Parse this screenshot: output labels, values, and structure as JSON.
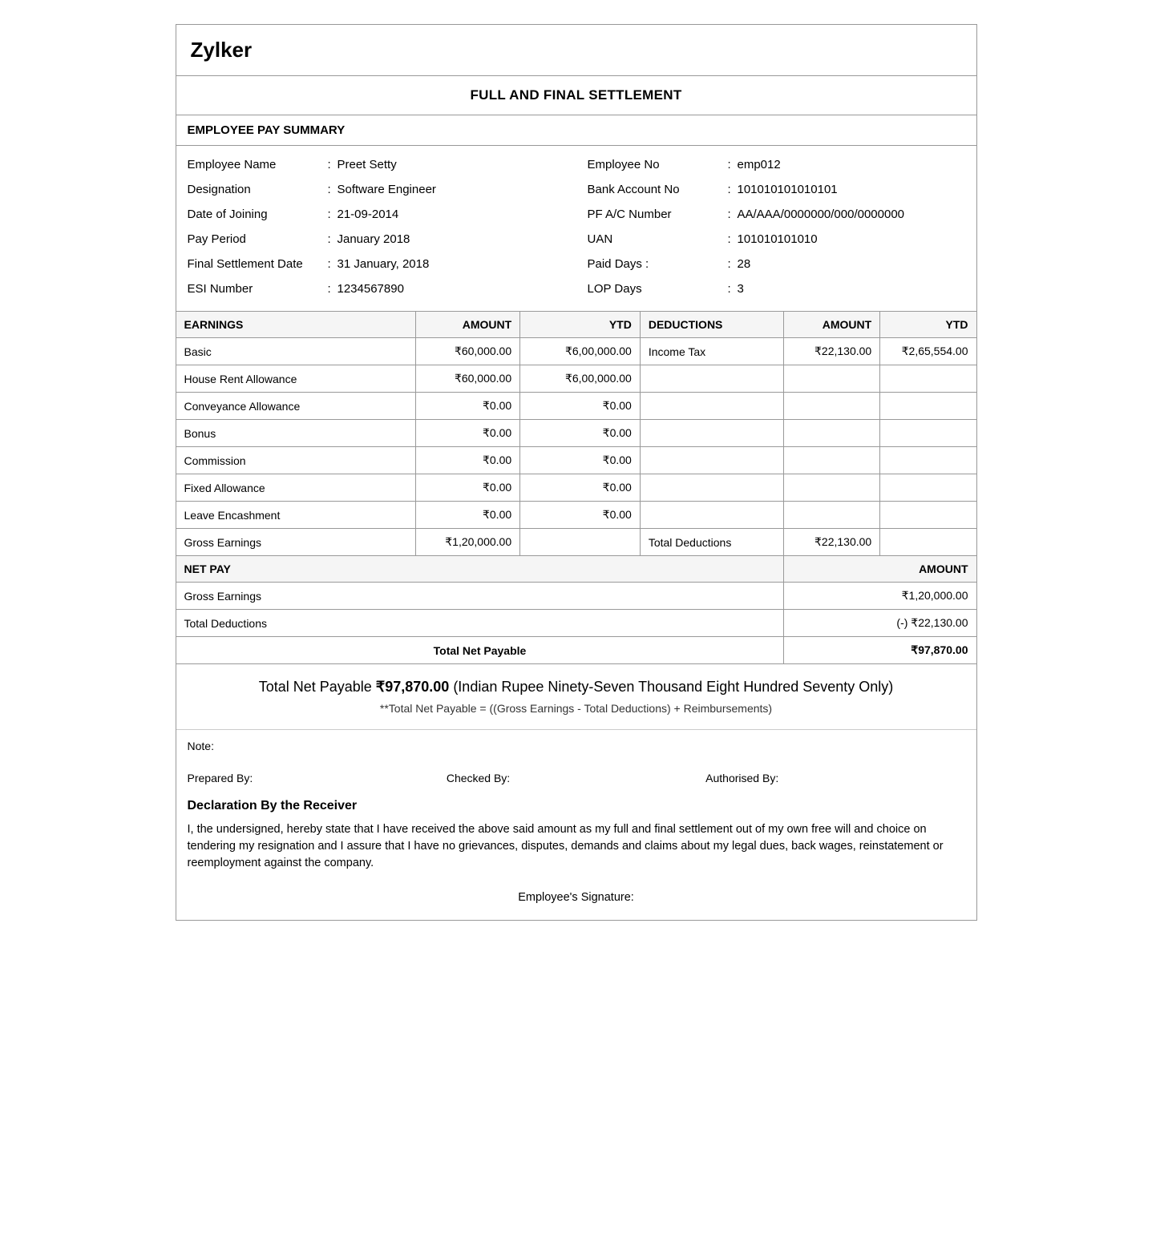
{
  "company": {
    "name": "Zylker"
  },
  "document": {
    "title": "FULL AND FINAL SETTLEMENT"
  },
  "summary": {
    "section_title": "EMPLOYEE PAY SUMMARY",
    "left": [
      {
        "label": "Employee Name",
        "value": "Preet Setty"
      },
      {
        "label": "Designation",
        "value": "Software Engineer"
      },
      {
        "label": "Date of Joining",
        "value": "21-09-2014"
      },
      {
        "label": "Pay Period",
        "value": "January 2018"
      },
      {
        "label": "Final Settlement Date",
        "value": "31 January, 2018"
      },
      {
        "label": "ESI Number",
        "value": "1234567890"
      }
    ],
    "right": [
      {
        "label": "Employee No",
        "value": "emp012"
      },
      {
        "label": "Bank Account No",
        "value": "101010101010101"
      },
      {
        "label": "PF A/C Number",
        "value": "AA/AAA/0000000/000/0000000"
      },
      {
        "label": "UAN",
        "value": "101010101010"
      },
      {
        "label": "Paid Days :",
        "value": "28"
      },
      {
        "label": "LOP Days",
        "value": "3"
      }
    ]
  },
  "tables": {
    "headers": {
      "earnings": "EARNINGS",
      "amount": "AMOUNT",
      "ytd": "YTD",
      "deductions": "DEDUCTIONS",
      "d_amount": "AMOUNT",
      "d_ytd": "YTD"
    },
    "rows": [
      {
        "earn": "Basic",
        "amt": "₹60,000.00",
        "ytd": "₹6,00,000.00",
        "ded": "Income Tax",
        "damt": "₹22,130.00",
        "dytd": "₹2,65,554.00"
      },
      {
        "earn": "House Rent Allowance",
        "amt": "₹60,000.00",
        "ytd": "₹6,00,000.00",
        "ded": "",
        "damt": "",
        "dytd": ""
      },
      {
        "earn": "Conveyance Allowance",
        "amt": "₹0.00",
        "ytd": "₹0.00",
        "ded": "",
        "damt": "",
        "dytd": ""
      },
      {
        "earn": "Bonus",
        "amt": "₹0.00",
        "ytd": "₹0.00",
        "ded": "",
        "damt": "",
        "dytd": ""
      },
      {
        "earn": "Commission",
        "amt": "₹0.00",
        "ytd": "₹0.00",
        "ded": "",
        "damt": "",
        "dytd": ""
      },
      {
        "earn": "Fixed Allowance",
        "amt": "₹0.00",
        "ytd": "₹0.00",
        "ded": "",
        "damt": "",
        "dytd": ""
      },
      {
        "earn": "Leave Encashment",
        "amt": "₹0.00",
        "ytd": "₹0.00",
        "ded": "",
        "damt": "",
        "dytd": ""
      }
    ],
    "totals": {
      "gross_earnings_label": "Gross Earnings",
      "gross_earnings_value": "₹1,20,000.00",
      "total_deductions_label": "Total Deductions",
      "total_deductions_value": "₹22,130.00"
    }
  },
  "netpay": {
    "header_label": "NET PAY",
    "header_amount": "AMOUNT",
    "rows": [
      {
        "label": "Gross Earnings",
        "value": "₹1,20,000.00"
      },
      {
        "label": "Total Deductions",
        "value": "(-) ₹22,130.00"
      }
    ],
    "total_label": "Total Net Payable",
    "total_value": "₹97,870.00"
  },
  "words": {
    "prefix": "Total Net Payable ",
    "amount": "₹97,870.00",
    "suffix": " (Indian Rupee Ninety-Seven Thousand Eight Hundred Seventy Only)",
    "formula": "**Total Net Payable = ((Gross Earnings - Total Deductions) + Reimbursements)"
  },
  "footer": {
    "note_label": "Note:",
    "prepared_by": "Prepared By:",
    "checked_by": "Checked By:",
    "authorised_by": "Authorised By:",
    "declaration_title": "Declaration By the Receiver",
    "declaration_body": "I, the undersigned, hereby state that I have received the above said amount as my full and final settlement out of my own free will and choice on tendering my resignation and I assure that I have no grievances, disputes, demands and claims about my legal dues, back wages, reinstatement or reemployment against the company.",
    "employee_signature": "Employee's Signature:"
  }
}
